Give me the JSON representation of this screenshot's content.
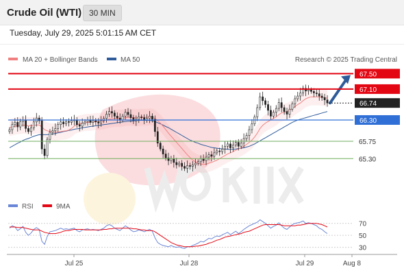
{
  "header": {
    "title": "Crude Oil (WTI)",
    "interval": "30 MIN",
    "datetime": "Tuesday, July 29, 2025 5:01:15 AM CET"
  },
  "legend": {
    "ma20_label": "MA 20 + Bollinger Bands",
    "ma50_label": "MA 50",
    "copyright": "Research © 2025 Trading Central",
    "rsi_label": "RSI",
    "rsi_ma_label": "9MA"
  },
  "colors": {
    "ma20": "#f08080",
    "ma50": "#2f5b9a",
    "resistance": "#e30613",
    "pivot": "#2f6fd6",
    "support": "#6fae5c",
    "current": "#222222",
    "arrow": "#2f5b9a",
    "rsi": "#6a86d6",
    "rsi_ma": "#e30613"
  },
  "chart_data": [
    {
      "type": "candlestick",
      "title": "Crude Oil (WTI)",
      "interval": "30 MIN",
      "x_labels": [
        "Jul 25",
        "Jul 28",
        "Jul 29",
        "Aug 8"
      ],
      "ylim": [
        64.95,
        67.72
      ],
      "levels": [
        {
          "label": "67.50",
          "value": 67.5,
          "kind": "resistance"
        },
        {
          "label": "67.10",
          "value": 67.1,
          "kind": "resistance"
        },
        {
          "label": "66.74",
          "value": 66.74,
          "kind": "current"
        },
        {
          "label": "66.30",
          "value": 66.3,
          "kind": "pivot"
        },
        {
          "label": "65.75",
          "value": 65.75,
          "kind": "support"
        },
        {
          "label": "65.30",
          "value": 65.3,
          "kind": "support"
        }
      ],
      "close": [
        66.05,
        66.18,
        66.24,
        66.12,
        66.26,
        66.3,
        66.08,
        66.0,
        66.1,
        66.25,
        66.35,
        66.28,
        65.55,
        65.38,
        65.8,
        65.98,
        66.02,
        66.08,
        66.18,
        66.25,
        66.2,
        66.26,
        66.24,
        66.28,
        66.3,
        66.18,
        66.14,
        66.22,
        66.26,
        66.3,
        66.24,
        66.28,
        66.25,
        66.22,
        66.28,
        66.34,
        66.45,
        66.52,
        66.48,
        66.4,
        66.35,
        66.3,
        66.4,
        66.5,
        66.44,
        66.36,
        66.28,
        66.32,
        66.38,
        66.36,
        66.3,
        66.34,
        66.4,
        66.32,
        66.0,
        65.7,
        65.55,
        65.42,
        65.32,
        65.25,
        65.3,
        65.2,
        65.14,
        65.18,
        65.1,
        65.05,
        65.12,
        65.1,
        65.14,
        65.18,
        65.22,
        65.3,
        65.25,
        65.34,
        65.4,
        65.36,
        65.45,
        65.5,
        65.48,
        65.55,
        65.62,
        65.68,
        65.58,
        65.65,
        65.72,
        65.62,
        65.7,
        65.82,
        65.9,
        66.05,
        66.2,
        66.38,
        66.62,
        66.9,
        66.8,
        66.7,
        66.55,
        66.4,
        66.5,
        66.6,
        66.75,
        66.62,
        66.52,
        66.45,
        66.58,
        66.72,
        66.85,
        66.92,
        67.0,
        67.12,
        67.05,
        67.08,
        67.04,
        67.0,
        66.98,
        66.92,
        66.88,
        66.82,
        66.74
      ],
      "ma20": [
        66.1,
        66.12,
        66.14,
        66.15,
        66.16,
        66.17,
        66.16,
        66.15,
        66.15,
        66.16,
        66.17,
        66.17,
        66.12,
        66.05,
        66.02,
        66.0,
        65.99,
        65.98,
        65.99,
        66.0,
        66.01,
        66.02,
        66.04,
        66.08,
        66.14,
        66.18,
        66.2,
        66.22,
        66.23,
        66.24,
        66.24,
        66.25,
        66.26,
        66.26,
        66.27,
        66.28,
        66.3,
        66.32,
        66.33,
        66.34,
        66.34,
        66.34,
        66.35,
        66.36,
        66.37,
        66.37,
        66.36,
        66.36,
        66.36,
        66.37,
        66.37,
        66.37,
        66.38,
        66.37,
        66.34,
        66.28,
        66.22,
        66.14,
        66.05,
        65.96,
        65.88,
        65.8,
        65.72,
        65.64,
        65.56,
        65.48,
        65.4,
        65.33,
        65.26,
        65.22,
        65.18,
        65.16,
        65.15,
        65.16,
        65.18,
        65.2,
        65.23,
        65.26,
        65.3,
        65.34,
        65.38,
        65.42,
        65.45,
        65.48,
        65.52,
        65.55,
        65.58,
        65.62,
        65.67,
        65.72,
        65.78,
        65.86,
        65.96,
        66.08,
        66.16,
        66.22,
        66.26,
        66.3,
        66.34,
        66.38,
        66.44,
        66.48,
        66.5,
        66.52,
        66.55,
        66.6,
        66.65,
        66.7,
        66.74,
        66.8,
        66.85,
        66.88,
        66.9,
        66.9,
        66.9,
        66.9,
        66.89,
        66.88,
        66.86
      ],
      "ma50": [
        65.58,
        65.62,
        65.66,
        65.7,
        65.73,
        65.77,
        65.8,
        65.82,
        65.85,
        65.88,
        65.9,
        65.92,
        65.92,
        65.92,
        65.92,
        65.93,
        65.94,
        65.95,
        65.97,
        65.98,
        66.0,
        66.01,
        66.03,
        66.04,
        66.06,
        66.07,
        66.08,
        66.1,
        66.11,
        66.12,
        66.13,
        66.14,
        66.15,
        66.16,
        66.17,
        66.18,
        66.19,
        66.2,
        66.21,
        66.22,
        66.23,
        66.24,
        66.25,
        66.26,
        66.27,
        66.27,
        66.28,
        66.28,
        66.29,
        66.29,
        66.29,
        66.29,
        66.29,
        66.28,
        66.26,
        66.23,
        66.2,
        66.17,
        66.13,
        66.1,
        66.06,
        66.02,
        65.98,
        65.94,
        65.9,
        65.86,
        65.82,
        65.78,
        65.75,
        65.72,
        65.7,
        65.67,
        65.65,
        65.63,
        65.61,
        65.59,
        65.58,
        65.57,
        65.56,
        65.55,
        65.55,
        65.54,
        65.54,
        65.54,
        65.55,
        65.56,
        65.57,
        65.58,
        65.6,
        65.62,
        65.65,
        65.68,
        65.72,
        65.76,
        65.8,
        65.84,
        65.88,
        65.92,
        65.96,
        66.0,
        66.04,
        66.08,
        66.12,
        66.16,
        66.2,
        66.24,
        66.27,
        66.3,
        66.32,
        66.34,
        66.36,
        66.38,
        66.4,
        66.42,
        66.44,
        66.46,
        66.48,
        66.5,
        66.52
      ]
    },
    {
      "type": "line",
      "title": "RSI",
      "series": [
        {
          "name": "RSI",
          "values": [
            62,
            66,
            64,
            58,
            61,
            65,
            55,
            50,
            54,
            60,
            63,
            60,
            40,
            35,
            48,
            56,
            57,
            58,
            60,
            62,
            60,
            61,
            60,
            61,
            62,
            58,
            56,
            59,
            60,
            61,
            59,
            60,
            59,
            58,
            60,
            62,
            66,
            68,
            66,
            62,
            60,
            58,
            62,
            66,
            63,
            59,
            56,
            57,
            59,
            58,
            56,
            58,
            60,
            57,
            46,
            38,
            35,
            33,
            32,
            31,
            33,
            31,
            30,
            31,
            29,
            28,
            31,
            31,
            33,
            35,
            37,
            40,
            39,
            42,
            45,
            44,
            47,
            49,
            48,
            51,
            53,
            55,
            51,
            54,
            57,
            53,
            56,
            60,
            63,
            66,
            68,
            70,
            72,
            76,
            73,
            70,
            66,
            62,
            65,
            67,
            71,
            66,
            62,
            60,
            64,
            68,
            70,
            71,
            72,
            74,
            70,
            71,
            70,
            68,
            66,
            62,
            60,
            56,
            53
          ]
        },
        {
          "name": "9MA",
          "values": [
            64,
            64,
            64,
            63,
            63,
            63,
            62,
            61,
            60,
            59,
            59,
            59,
            57,
            55,
            54,
            53,
            53,
            53,
            54,
            55,
            57,
            58,
            58,
            59,
            60,
            60,
            60,
            60,
            59,
            59,
            59,
            59,
            59,
            59,
            59,
            60,
            60,
            61,
            61,
            62,
            62,
            62,
            62,
            62,
            62,
            62,
            61,
            61,
            60,
            59,
            59,
            58,
            58,
            58,
            56,
            53,
            50,
            47,
            44,
            41,
            38,
            36,
            34,
            33,
            32,
            31,
            31,
            31,
            31,
            32,
            32,
            33,
            34,
            35,
            37,
            38,
            40,
            42,
            43,
            45,
            47,
            48,
            49,
            50,
            51,
            52,
            53,
            55,
            56,
            57,
            59,
            61,
            63,
            65,
            67,
            68,
            68,
            68,
            68,
            68,
            68,
            67,
            66,
            66,
            66,
            66,
            66,
            67,
            67,
            68,
            69,
            70,
            70,
            70,
            70,
            69,
            68,
            66,
            64
          ]
        }
      ],
      "ylim": [
        25,
        80
      ],
      "yticks": [
        "70",
        "50",
        "30"
      ]
    }
  ]
}
